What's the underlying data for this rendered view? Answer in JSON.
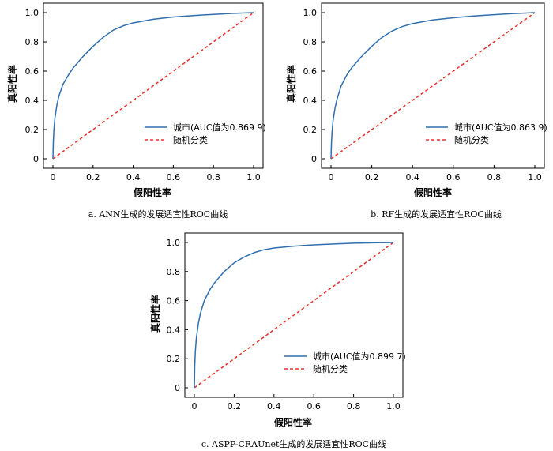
{
  "chart_data": [
    {
      "type": "line",
      "panel": "a",
      "caption": "a.  ANN生成的发展适宜性ROC曲线",
      "xlabel": "假阳性率",
      "ylabel": "真阳性率",
      "xlim": [
        0,
        1
      ],
      "ylim": [
        0,
        1
      ],
      "xticks": [
        "0",
        "0.2",
        "0.4",
        "0.6",
        "0.8",
        "1.0"
      ],
      "yticks": [
        "0",
        "0.2",
        "0.4",
        "0.6",
        "0.8",
        "1.0"
      ],
      "legend_position": "lower-right",
      "series": [
        {
          "name": "城市(AUC值为0.869 9)",
          "color": "#2f6fae",
          "style": "solid",
          "x": [
            0,
            0.002,
            0.005,
            0.01,
            0.02,
            0.03,
            0.05,
            0.08,
            0.1,
            0.15,
            0.2,
            0.25,
            0.3,
            0.35,
            0.4,
            0.5,
            0.6,
            0.7,
            0.8,
            0.9,
            1.0
          ],
          "y": [
            0,
            0.12,
            0.2,
            0.28,
            0.37,
            0.43,
            0.51,
            0.58,
            0.62,
            0.7,
            0.77,
            0.83,
            0.88,
            0.91,
            0.93,
            0.955,
            0.97,
            0.98,
            0.988,
            0.995,
            1.0
          ]
        },
        {
          "name": "随机分类",
          "color": "#e8312a",
          "style": "dashed",
          "x": [
            0,
            1
          ],
          "y": [
            0,
            1
          ]
        }
      ]
    },
    {
      "type": "line",
      "panel": "b",
      "caption": "b.  RF生成的发展适宜性ROC曲线",
      "xlabel": "假阳性率",
      "ylabel": "真阳性率",
      "xlim": [
        0,
        1
      ],
      "ylim": [
        0,
        1
      ],
      "xticks": [
        "0",
        "0.2",
        "0.4",
        "0.6",
        "0.8",
        "1.0"
      ],
      "yticks": [
        "0",
        "0.2",
        "0.4",
        "0.6",
        "0.8",
        "1.0"
      ],
      "legend_position": "lower-right",
      "series": [
        {
          "name": "城市(AUC值为0.863 9)",
          "color": "#2f6fae",
          "style": "solid",
          "x": [
            0,
            0.002,
            0.005,
            0.01,
            0.02,
            0.03,
            0.05,
            0.08,
            0.1,
            0.15,
            0.2,
            0.25,
            0.3,
            0.35,
            0.4,
            0.5,
            0.6,
            0.7,
            0.8,
            0.9,
            1.0
          ],
          "y": [
            0,
            0.1,
            0.18,
            0.26,
            0.35,
            0.41,
            0.5,
            0.58,
            0.62,
            0.7,
            0.77,
            0.83,
            0.875,
            0.905,
            0.925,
            0.95,
            0.965,
            0.977,
            0.986,
            0.994,
            1.0
          ]
        },
        {
          "name": "随机分类",
          "color": "#e8312a",
          "style": "dashed",
          "x": [
            0,
            1
          ],
          "y": [
            0,
            1
          ]
        }
      ]
    },
    {
      "type": "line",
      "panel": "c",
      "caption": "c.  ASPP-CRAUnet生成的发展适宜性ROC曲线",
      "xlabel": "假阳性率",
      "ylabel": "真阳性率",
      "xlim": [
        0,
        1
      ],
      "ylim": [
        0,
        1
      ],
      "xticks": [
        "0",
        "0.2",
        "0.4",
        "0.6",
        "0.8",
        "1.0"
      ],
      "yticks": [
        "0",
        "0.2",
        "0.4",
        "0.6",
        "0.8",
        "1.0"
      ],
      "legend_position": "lower-right",
      "series": [
        {
          "name": "城市(AUC值为0.899 7)",
          "color": "#2f6fae",
          "style": "solid",
          "x": [
            0,
            0.002,
            0.005,
            0.01,
            0.02,
            0.03,
            0.05,
            0.08,
            0.1,
            0.15,
            0.2,
            0.25,
            0.3,
            0.35,
            0.4,
            0.5,
            0.6,
            0.7,
            0.8,
            0.9,
            1.0
          ],
          "y": [
            0,
            0.15,
            0.25,
            0.34,
            0.44,
            0.51,
            0.6,
            0.68,
            0.72,
            0.8,
            0.86,
            0.9,
            0.93,
            0.95,
            0.962,
            0.975,
            0.984,
            0.99,
            0.995,
            0.998,
            1.0
          ]
        },
        {
          "name": "随机分类",
          "color": "#e8312a",
          "style": "dashed",
          "x": [
            0,
            1
          ],
          "y": [
            0,
            1
          ]
        }
      ]
    }
  ]
}
